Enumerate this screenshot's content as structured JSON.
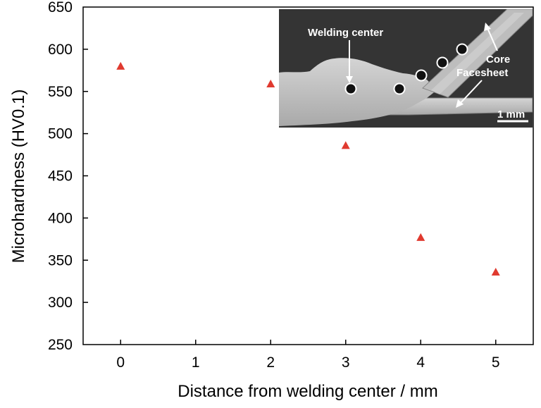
{
  "chart_data": {
    "type": "scatter",
    "xlabel": "Distance from welding center / mm",
    "ylabel": "Microhardness (HV0.1)",
    "xlim": [
      -0.5,
      5.5
    ],
    "ylim": [
      250,
      650
    ],
    "xticks": [
      0,
      1,
      2,
      3,
      4,
      5
    ],
    "yticks": [
      250,
      300,
      350,
      400,
      450,
      500,
      550,
      600,
      650
    ],
    "grid": false,
    "marker": "triangle",
    "series": [
      {
        "color": "#e03a2f",
        "x": [
          0,
          2,
          3,
          4,
          5
        ],
        "y": [
          580,
          559,
          486,
          377,
          336
        ]
      }
    ]
  },
  "inset": {
    "labels": {
      "welding_center": "Welding center",
      "core": "Core",
      "facesheet": "Facesheet",
      "scale": "1 mm"
    }
  }
}
